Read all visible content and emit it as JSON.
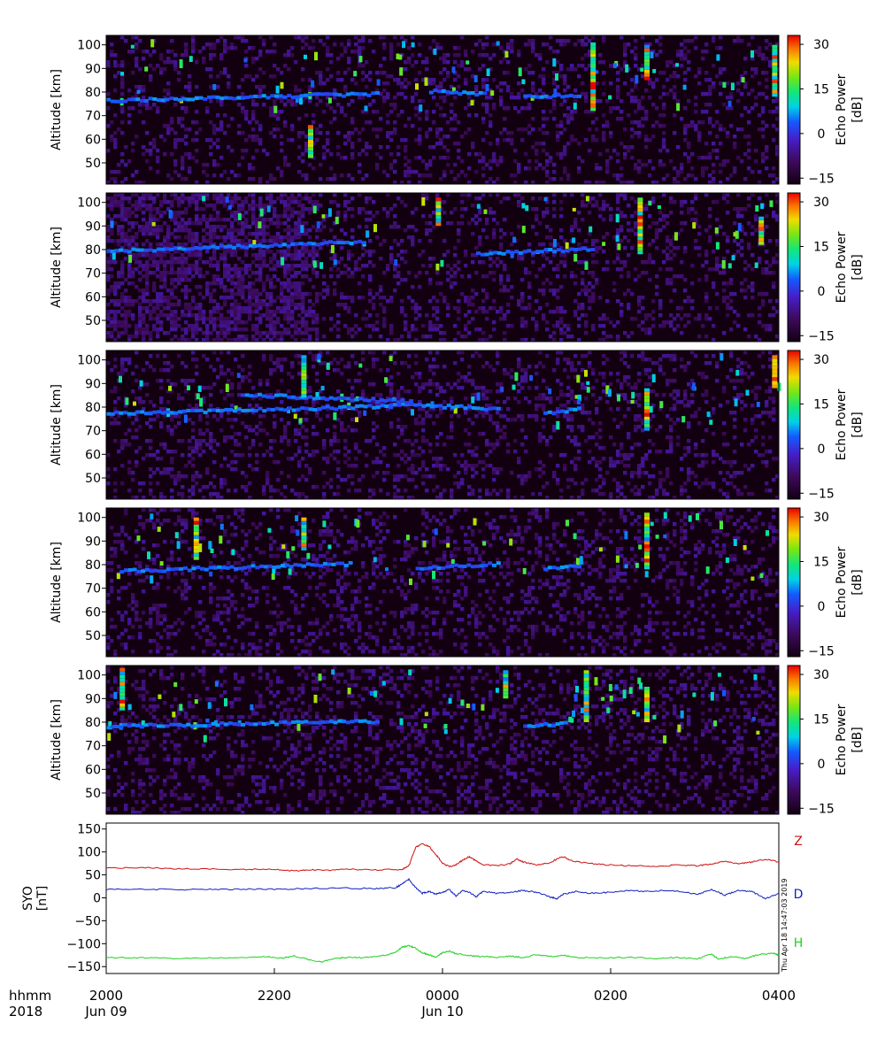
{
  "chart_data": {
    "type": "heatmap",
    "panels": [
      {
        "ylabel": "Altitude [km]",
        "yticks": [
          50,
          60,
          70,
          80,
          90,
          100
        ],
        "ylim": [
          41,
          104
        ],
        "colorbar": {
          "label_line1": "Echo Power",
          "label_line2": "[dB]",
          "ticks": [
            30,
            15,
            0,
            -15
          ],
          "range": [
            -17,
            33
          ]
        },
        "echo_layers": [
          {
            "x0": 0,
            "x1": 0.4,
            "alt0": 77,
            "alt1": 80
          },
          {
            "x0": 0.48,
            "x1": 0.56,
            "alt0": 81,
            "alt1": 80
          },
          {
            "x0": 0.62,
            "x1": 0.7,
            "alt0": 79,
            "alt1": 79
          }
        ],
        "streaks": [
          {
            "x": 0.3,
            "alt0": 52,
            "alt1": 66
          },
          {
            "x": 0.72,
            "alt0": 72,
            "alt1": 101
          },
          {
            "x": 0.8,
            "alt0": 85,
            "alt1": 100
          },
          {
            "x": 0.99,
            "alt0": 78,
            "alt1": 100
          }
        ],
        "seed": 11
      },
      {
        "ylabel": "Altitude [km]",
        "yticks": [
          50,
          60,
          70,
          80,
          90,
          100
        ],
        "ylim": [
          41,
          104
        ],
        "colorbar": {
          "label_line1": "Echo Power",
          "label_line2": "[dB]",
          "ticks": [
            30,
            15,
            0,
            -15
          ],
          "range": [
            -17,
            33
          ]
        },
        "echo_layers": [
          {
            "x0": 0,
            "x1": 0.38,
            "alt0": 80,
            "alt1": 84
          },
          {
            "x0": 0.55,
            "x1": 0.72,
            "alt0": 79,
            "alt1": 81
          }
        ],
        "streaks": [
          {
            "x": 0.49,
            "alt0": 90,
            "alt1": 102
          },
          {
            "x": 0.79,
            "alt0": 78,
            "alt1": 102
          },
          {
            "x": 0.97,
            "alt0": 82,
            "alt1": 94
          }
        ],
        "seed": 23
      },
      {
        "ylabel": "Altitude [km]",
        "yticks": [
          50,
          60,
          70,
          80,
          90,
          100
        ],
        "ylim": [
          41,
          104
        ],
        "colorbar": {
          "label_line1": "Echo Power",
          "label_line2": "[dB]",
          "ticks": [
            30,
            15,
            0,
            -15
          ],
          "range": [
            -17,
            33
          ]
        },
        "echo_layers": [
          {
            "x0": 0,
            "x1": 0.42,
            "alt0": 78,
            "alt1": 81
          },
          {
            "x0": 0.42,
            "x1": 0.58,
            "alt0": 82,
            "alt1": 80
          },
          {
            "x0": 0.65,
            "x1": 0.7,
            "alt0": 78,
            "alt1": 80
          },
          {
            "x0": 0.2,
            "x1": 0.45,
            "alt0": 86,
            "alt1": 83
          }
        ],
        "streaks": [
          {
            "x": 0.8,
            "alt0": 70,
            "alt1": 88
          },
          {
            "x": 0.29,
            "alt0": 84,
            "alt1": 102
          },
          {
            "x": 0.99,
            "alt0": 88,
            "alt1": 102
          }
        ],
        "seed": 37
      },
      {
        "ylabel": "Altitude [km]",
        "yticks": [
          50,
          60,
          70,
          80,
          90,
          100
        ],
        "ylim": [
          41,
          104
        ],
        "colorbar": {
          "label_line1": "Echo Power",
          "label_line2": "[dB]",
          "ticks": [
            30,
            15,
            0,
            -15
          ],
          "range": [
            -17,
            33
          ]
        },
        "echo_layers": [
          {
            "x0": 0.02,
            "x1": 0.36,
            "alt0": 78,
            "alt1": 81
          },
          {
            "x0": 0.46,
            "x1": 0.58,
            "alt0": 79,
            "alt1": 81
          },
          {
            "x0": 0.65,
            "x1": 0.7,
            "alt0": 79,
            "alt1": 80
          }
        ],
        "streaks": [
          {
            "x": 0.8,
            "alt0": 78,
            "alt1": 102
          },
          {
            "x": 0.13,
            "alt0": 82,
            "alt1": 100
          },
          {
            "x": 0.29,
            "alt0": 86,
            "alt1": 100
          }
        ],
        "seed": 51
      },
      {
        "ylabel": "Altitude [km]",
        "yticks": [
          50,
          60,
          70,
          80,
          90,
          100
        ],
        "ylim": [
          41,
          104
        ],
        "colorbar": {
          "label_line1": "Echo Power",
          "label_line2": "[dB]",
          "ticks": [
            30,
            15,
            0,
            -15
          ],
          "range": [
            -17,
            33
          ]
        },
        "echo_layers": [
          {
            "x0": 0.0,
            "x1": 0.4,
            "alt0": 79,
            "alt1": 81
          },
          {
            "x0": 0.62,
            "x1": 0.68,
            "alt0": 79,
            "alt1": 80
          }
        ],
        "streaks": [
          {
            "x": 0.02,
            "alt0": 85,
            "alt1": 103
          },
          {
            "x": 0.71,
            "alt0": 80,
            "alt1": 102
          },
          {
            "x": 0.8,
            "alt0": 80,
            "alt1": 95
          },
          {
            "x": 0.59,
            "alt0": 90,
            "alt1": 102
          }
        ],
        "seed": 73
      }
    ],
    "magnetometer": {
      "type": "line",
      "ylabel_line1": "SYO",
      "ylabel_line2": "[nT]",
      "yticks": [
        150,
        100,
        50,
        0,
        -50,
        -100,
        -150
      ],
      "ylim": [
        -165,
        163
      ],
      "grid": false,
      "series": [
        {
          "name": "Z",
          "color": "#d01010",
          "points": [
            [
              0,
              65
            ],
            [
              0.05,
              66
            ],
            [
              0.1,
              64
            ],
            [
              0.15,
              63
            ],
            [
              0.2,
              62
            ],
            [
              0.25,
              62
            ],
            [
              0.28,
              58
            ],
            [
              0.3,
              61
            ],
            [
              0.33,
              60
            ],
            [
              0.36,
              62
            ],
            [
              0.4,
              61
            ],
            [
              0.44,
              62
            ],
            [
              0.45,
              70
            ],
            [
              0.46,
              110
            ],
            [
              0.47,
              118
            ],
            [
              0.48,
              112
            ],
            [
              0.49,
              95
            ],
            [
              0.5,
              76
            ],
            [
              0.51,
              68
            ],
            [
              0.52,
              72
            ],
            [
              0.53,
              82
            ],
            [
              0.54,
              90
            ],
            [
              0.55,
              80
            ],
            [
              0.56,
              72
            ],
            [
              0.58,
              70
            ],
            [
              0.6,
              74
            ],
            [
              0.61,
              85
            ],
            [
              0.62,
              78
            ],
            [
              0.64,
              72
            ],
            [
              0.66,
              76
            ],
            [
              0.67,
              85
            ],
            [
              0.68,
              90
            ],
            [
              0.69,
              82
            ],
            [
              0.71,
              76
            ],
            [
              0.74,
              72
            ],
            [
              0.78,
              70
            ],
            [
              0.82,
              68
            ],
            [
              0.85,
              72
            ],
            [
              0.88,
              70
            ],
            [
              0.9,
              74
            ],
            [
              0.92,
              80
            ],
            [
              0.94,
              74
            ],
            [
              0.96,
              78
            ],
            [
              0.98,
              84
            ],
            [
              1.0,
              78
            ]
          ]
        },
        {
          "name": "D",
          "color": "#1020c0",
          "points": [
            [
              0,
              18
            ],
            [
              0.05,
              19
            ],
            [
              0.1,
              18
            ],
            [
              0.15,
              18
            ],
            [
              0.2,
              19
            ],
            [
              0.25,
              19
            ],
            [
              0.3,
              20
            ],
            [
              0.35,
              21
            ],
            [
              0.4,
              20
            ],
            [
              0.43,
              22
            ],
            [
              0.44,
              30
            ],
            [
              0.45,
              40
            ],
            [
              0.46,
              22
            ],
            [
              0.47,
              10
            ],
            [
              0.48,
              14
            ],
            [
              0.49,
              8
            ],
            [
              0.5,
              12
            ],
            [
              0.51,
              18
            ],
            [
              0.52,
              4
            ],
            [
              0.53,
              16
            ],
            [
              0.54,
              12
            ],
            [
              0.55,
              2
            ],
            [
              0.56,
              14
            ],
            [
              0.58,
              10
            ],
            [
              0.6,
              12
            ],
            [
              0.62,
              16
            ],
            [
              0.64,
              12
            ],
            [
              0.66,
              2
            ],
            [
              0.67,
              -2
            ],
            [
              0.68,
              8
            ],
            [
              0.7,
              14
            ],
            [
              0.72,
              10
            ],
            [
              0.75,
              12
            ],
            [
              0.78,
              16
            ],
            [
              0.8,
              14
            ],
            [
              0.83,
              16
            ],
            [
              0.85,
              14
            ],
            [
              0.88,
              8
            ],
            [
              0.9,
              18
            ],
            [
              0.92,
              6
            ],
            [
              0.94,
              16
            ],
            [
              0.96,
              14
            ],
            [
              0.98,
              -2
            ],
            [
              1.0,
              10
            ]
          ]
        },
        {
          "name": "H",
          "color": "#20d020",
          "points": [
            [
              0,
              -130
            ],
            [
              0.05,
              -131
            ],
            [
              0.1,
              -132
            ],
            [
              0.15,
              -131
            ],
            [
              0.2,
              -130
            ],
            [
              0.24,
              -128
            ],
            [
              0.26,
              -132
            ],
            [
              0.28,
              -127
            ],
            [
              0.3,
              -134
            ],
            [
              0.32,
              -140
            ],
            [
              0.34,
              -132
            ],
            [
              0.36,
              -130
            ],
            [
              0.38,
              -131
            ],
            [
              0.4,
              -128
            ],
            [
              0.42,
              -124
            ],
            [
              0.43,
              -118
            ],
            [
              0.44,
              -108
            ],
            [
              0.45,
              -104
            ],
            [
              0.46,
              -110
            ],
            [
              0.47,
              -120
            ],
            [
              0.48,
              -124
            ],
            [
              0.49,
              -130
            ],
            [
              0.5,
              -120
            ],
            [
              0.51,
              -116
            ],
            [
              0.52,
              -122
            ],
            [
              0.54,
              -126
            ],
            [
              0.56,
              -128
            ],
            [
              0.58,
              -130
            ],
            [
              0.6,
              -127
            ],
            [
              0.62,
              -130
            ],
            [
              0.64,
              -124
            ],
            [
              0.66,
              -128
            ],
            [
              0.68,
              -126
            ],
            [
              0.7,
              -130
            ],
            [
              0.74,
              -131
            ],
            [
              0.78,
              -130
            ],
            [
              0.82,
              -132
            ],
            [
              0.85,
              -130
            ],
            [
              0.88,
              -133
            ],
            [
              0.9,
              -122
            ],
            [
              0.91,
              -134
            ],
            [
              0.93,
              -128
            ],
            [
              0.95,
              -132
            ],
            [
              0.97,
              -124
            ],
            [
              0.99,
              -120
            ],
            [
              1.0,
              -125
            ]
          ]
        }
      ]
    },
    "x_axis": {
      "tick_labels": [
        "2000",
        "2200",
        "0000",
        "0200",
        "0400"
      ],
      "date_labels": [
        {
          "tick": 0,
          "text": "Jun 09"
        },
        {
          "tick": 2,
          "text": "Jun 10"
        }
      ],
      "row_label_1": "hhmm",
      "row_label_2": "2018"
    },
    "timestamp": "Thu Apr 18 14:47:03 2019"
  }
}
